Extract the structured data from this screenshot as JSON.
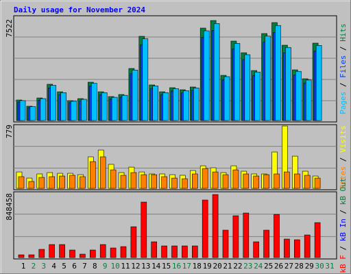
{
  "chart_data": [
    {
      "type": "bar",
      "title": "Daily usage for November 2024",
      "ylim": [
        0,
        7522
      ],
      "yticks": [
        7522
      ],
      "legend_separator": " / ",
      "series": [
        {
          "name": "Hits",
          "color": "#008040",
          "values": [
            1546,
            1082,
            1700,
            2731,
            2164,
            1494,
            1649,
            2885,
            2164,
            1803,
            1958,
            3916,
            6337,
            2679,
            2164,
            2473,
            2318,
            2525,
            6955,
            7522,
            3400,
            5976,
            5101,
            3761,
            6543,
            7368,
            5667,
            3813,
            3143,
            5822,
            null
          ]
        },
        {
          "name": "Files",
          "color": "#0040ff",
          "values": [
            1390,
            975,
            1530,
            2460,
            1950,
            1345,
            1485,
            2600,
            1950,
            1620,
            1760,
            3520,
            5700,
            2410,
            1950,
            2225,
            2085,
            2270,
            6260,
            6770,
            3060,
            5380,
            4590,
            3385,
            5890,
            6630,
            5100,
            3430,
            2830,
            5240,
            null
          ]
        },
        {
          "name": "Pages",
          "color": "#00c0ff",
          "values": [
            1500,
            1050,
            1650,
            2650,
            2100,
            1450,
            1600,
            2800,
            2100,
            1750,
            1900,
            3800,
            6150,
            2600,
            2100,
            2400,
            2250,
            2450,
            6750,
            7300,
            3300,
            5800,
            4950,
            3650,
            6350,
            7150,
            5500,
            3700,
            3050,
            5650,
            null
          ]
        }
      ]
    },
    {
      "type": "bar",
      "ylim": [
        0,
        779
      ],
      "yticks": [
        779
      ],
      "legend_separator": " / ",
      "series": [
        {
          "name": "Visits",
          "color": "#ffff00",
          "values": [
            205,
            128,
            180,
            197,
            188,
            188,
            171,
            394,
            479,
            300,
            197,
            265,
            205,
            180,
            180,
            171,
            163,
            223,
            282,
            257,
            197,
            282,
            214,
            180,
            180,
            454,
            779,
            402,
            214,
            154,
            null
          ]
        },
        {
          "name": "Sites",
          "color": "#ff8000",
          "values": [
            146,
            86,
            137,
            146,
            154,
            163,
            146,
            334,
            394,
            231,
            163,
            197,
            171,
            171,
            146,
            128,
            120,
            180,
            248,
            205,
            171,
            231,
            180,
            154,
            171,
            180,
            205,
            180,
            163,
            128,
            null
          ]
        }
      ]
    },
    {
      "type": "bar",
      "ylim": [
        0,
        848458
      ],
      "yticks": [
        848458
      ],
      "legend_separator": " / ",
      "categories": [
        "1",
        "2",
        "3",
        "4",
        "5",
        "6",
        "7",
        "8",
        "9",
        "10",
        "11",
        "12",
        "13",
        "14",
        "15",
        "16",
        "17",
        "18",
        "19",
        "20",
        "21",
        "22",
        "23",
        "24",
        "25",
        "26",
        "27",
        "28",
        "29",
        "30",
        "31"
      ],
      "category_colors": [
        "#000000",
        "#008040",
        "#008040",
        "#000000",
        "#000000",
        "#000000",
        "#000000",
        "#000000",
        "#008040",
        "#008040",
        "#000000",
        "#000000",
        "#000000",
        "#000000",
        "#000000",
        "#008040",
        "#008040",
        "#000000",
        "#000000",
        "#000000",
        "#000000",
        "#000000",
        "#008040",
        "#008040",
        "#000000",
        "#000000",
        "#000000",
        "#000000",
        "#000000",
        "#008040",
        "#008040"
      ],
      "series": [
        {
          "name": "kB Out",
          "color": "#008040"
        },
        {
          "name": "kB In",
          "color": "#0000ff"
        },
        {
          "name": "kB F",
          "color": "#ff0000",
          "values": [
            36889,
            36889,
            110668,
            175222,
            175222,
            101446,
            46112,
            101446,
            175222,
            129113,
            147557,
            415009,
            747002,
            212114,
            156779,
            156779,
            156779,
            156779,
            774669,
            848458,
            368897,
            562568,
            599458,
            212114,
            368897,
            581013,
            249005,
            239783,
            304340,
            470339,
            null
          ]
        }
      ]
    }
  ]
}
